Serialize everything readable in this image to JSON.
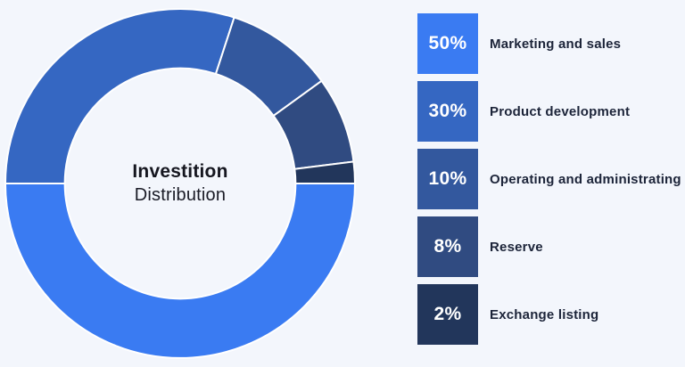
{
  "background_color": "#F3F6FC",
  "chart": {
    "center_title": "Investition",
    "center_subtitle": "Distribution"
  },
  "chart_data": {
    "type": "pie",
    "variant": "donut",
    "title": "Investition Distribution",
    "categories": [
      "Marketing and sales",
      "Product development",
      "Operating and administrating",
      "Reserve",
      "Exchange listing"
    ],
    "values": [
      50,
      30,
      10,
      8,
      2
    ],
    "unit": "%",
    "colors": [
      "#3A7BF2",
      "#3567C2",
      "#33589E",
      "#304B81",
      "#22365B"
    ],
    "start_angle_deg": 90,
    "direction": "clockwise",
    "inner_radius_ratio": 0.66,
    "separator_color": "#FFFFFF",
    "legend_position": "right"
  },
  "legend": {
    "items": [
      {
        "pct": "50%",
        "label": "Marketing and sales",
        "color": "#3A7BF2"
      },
      {
        "pct": "30%",
        "label": "Product development",
        "color": "#3567C2"
      },
      {
        "pct": "10%",
        "label": "Operating and administrating",
        "color": "#33589E"
      },
      {
        "pct": "8%",
        "label": "Reserve",
        "color": "#304B81"
      },
      {
        "pct": "2%",
        "label": "Exchange listing",
        "color": "#22365B"
      }
    ]
  }
}
